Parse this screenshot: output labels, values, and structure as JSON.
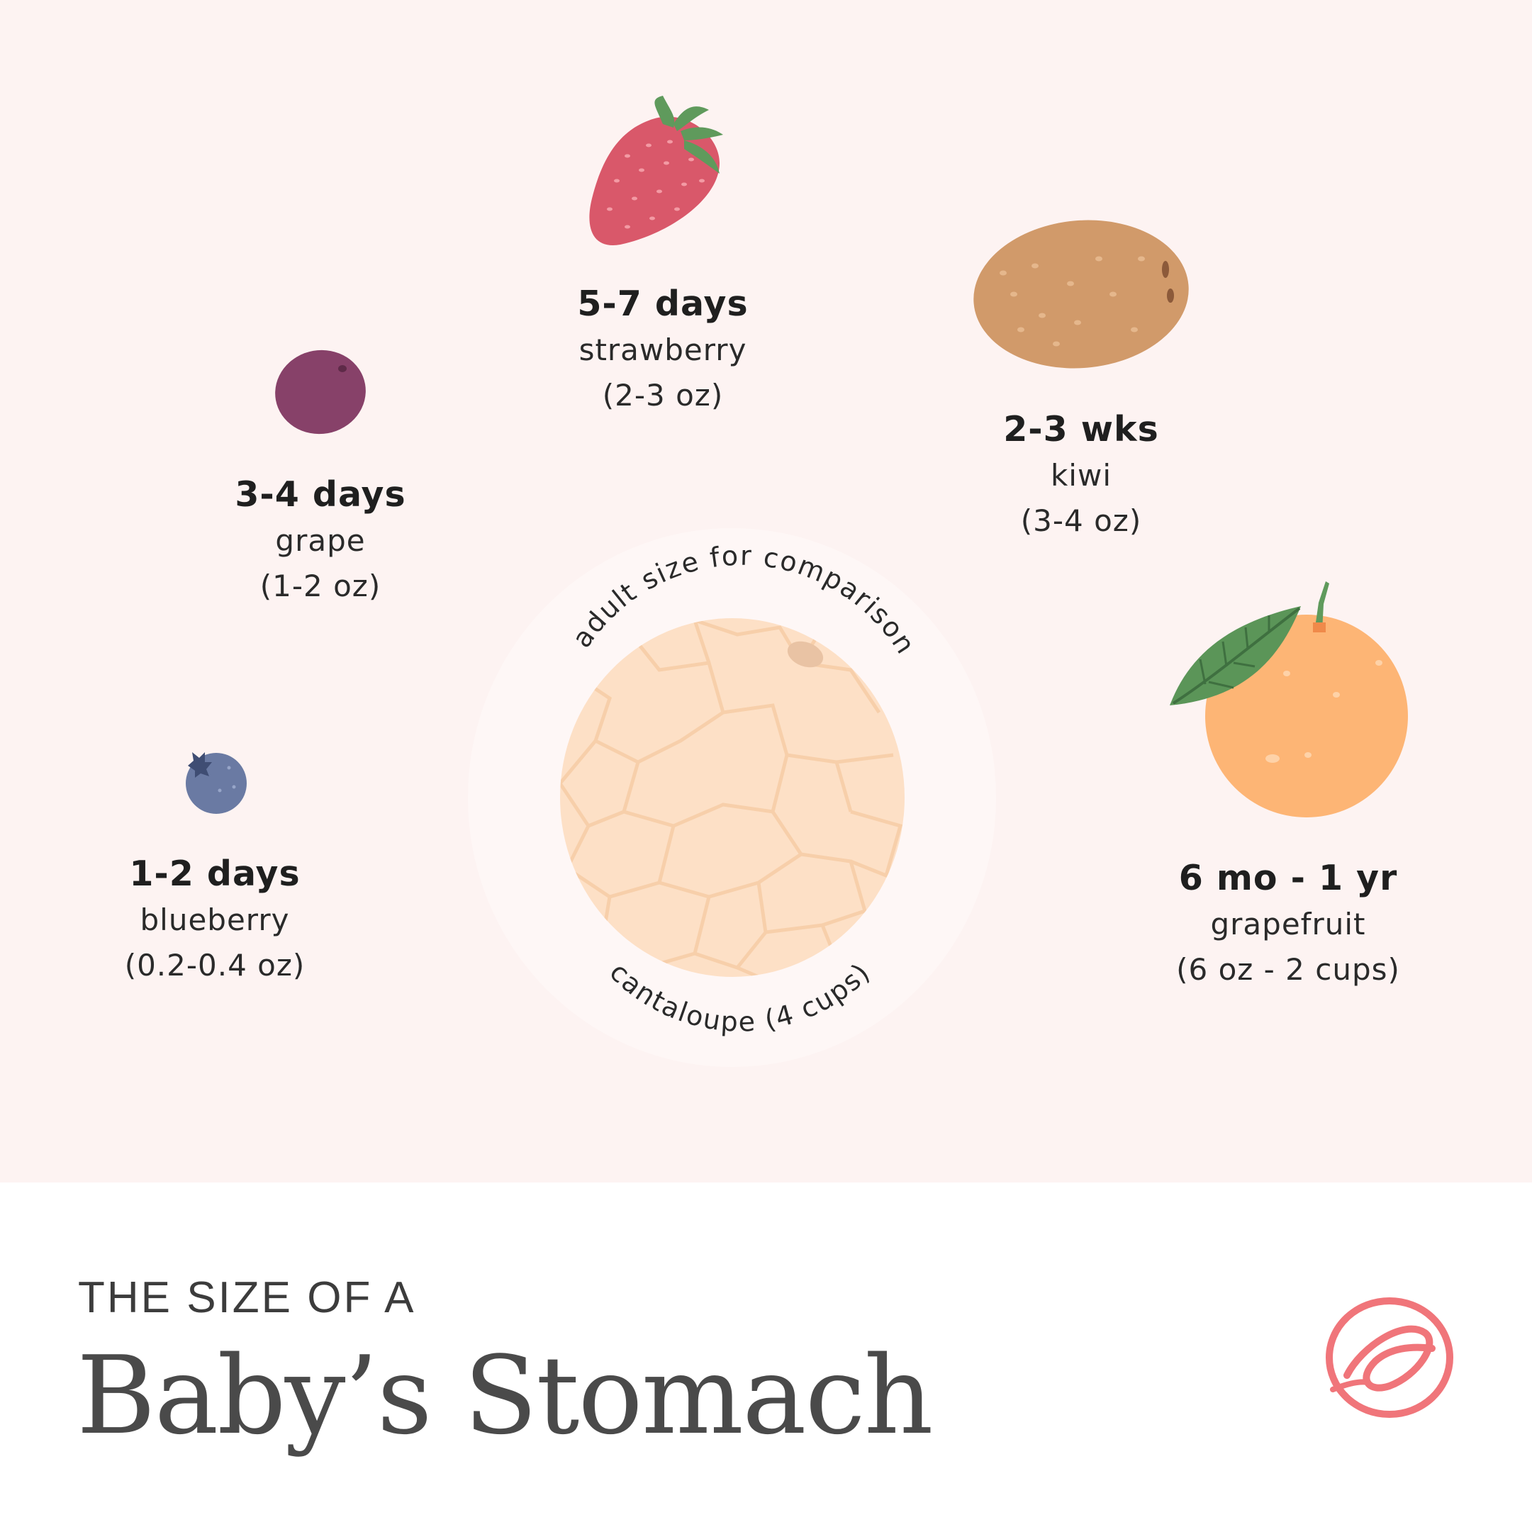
{
  "stages": {
    "blueberry": {
      "age": "1-2 days",
      "fruit": "blueberry",
      "volume": "(0.2-0.4 oz)"
    },
    "grape": {
      "age": "3-4 days",
      "fruit": "grape",
      "volume": "(1-2 oz)"
    },
    "strawberry": {
      "age": "5-7 days",
      "fruit": "strawberry",
      "volume": "(2-3 oz)"
    },
    "kiwi": {
      "age": "2-3 wks",
      "fruit": "kiwi",
      "volume": "(3-4 oz)"
    },
    "grapefruit": {
      "age": "6 mo - 1 yr",
      "fruit": "grapefruit",
      "volume": "(6 oz - 2 cups)"
    }
  },
  "comparison": {
    "top_caption": "adult size for comparison",
    "bottom_caption": "cantaloupe (4 cups)"
  },
  "footer": {
    "eyebrow": "THE SIZE OF A",
    "title": "Baby’s Stomach"
  },
  "colors": {
    "background": "#fdf3f2",
    "accent": "#f0757a"
  },
  "icons": {
    "blueberry": "blueberry-icon",
    "grape": "grape-icon",
    "strawberry": "strawberry-icon",
    "kiwi": "kiwi-icon",
    "grapefruit": "grapefruit-icon",
    "cantaloupe": "cantaloupe-icon",
    "logo": "logo-icon"
  }
}
